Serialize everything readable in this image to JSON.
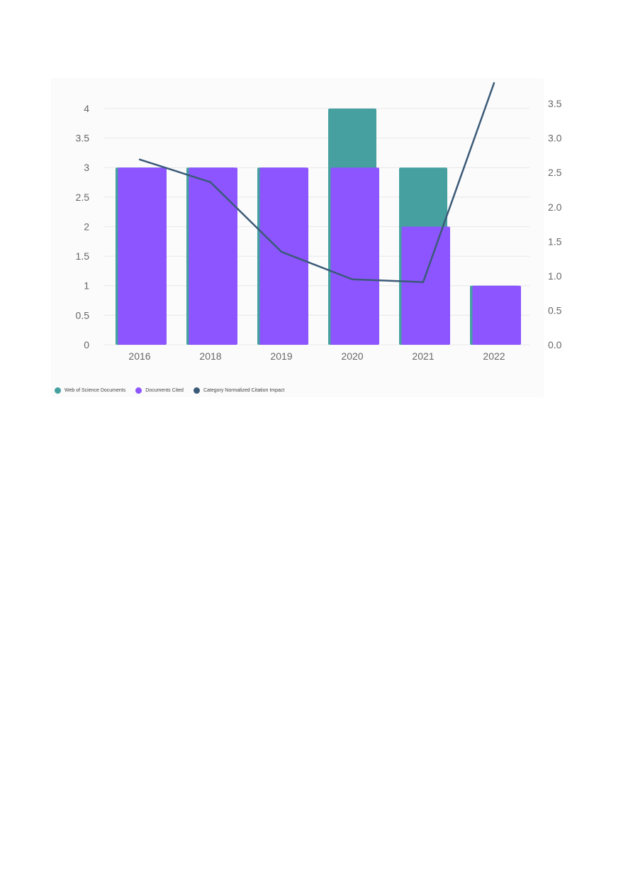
{
  "chart_data": {
    "type": "bar",
    "categories": [
      "2016",
      "2018",
      "2019",
      "2020",
      "2021",
      "2022"
    ],
    "series": [
      {
        "name": "Web of Science Documents",
        "kind": "bar",
        "axis": "left",
        "color": "#46a0a0",
        "values": [
          3,
          3,
          3,
          4,
          3,
          1
        ]
      },
      {
        "name": "Documents Cited",
        "kind": "bar",
        "axis": "left",
        "color": "#8c55ff",
        "values": [
          3,
          3,
          3,
          3,
          2,
          1
        ]
      },
      {
        "name": "Category Normalized Citation Impact",
        "kind": "line",
        "axis": "right",
        "color": "#3b5a78",
        "values": [
          2.69,
          2.36,
          1.35,
          0.95,
          0.91,
          3.8
        ]
      }
    ],
    "y_left": {
      "min": 0,
      "max": 4.3,
      "ticks": [
        "0",
        "0.5",
        "1",
        "1.5",
        "2",
        "2.5",
        "3",
        "3.5",
        "4"
      ]
    },
    "y_right": {
      "min": 0,
      "max": 3.8,
      "ticks": [
        "0.0",
        "0.5",
        "1.0",
        "1.5",
        "2.0",
        "2.5",
        "3.0",
        "3.5"
      ]
    },
    "grid": true,
    "legend_position": "bottom-left",
    "title": "",
    "xlabel": "",
    "ylabel": ""
  }
}
